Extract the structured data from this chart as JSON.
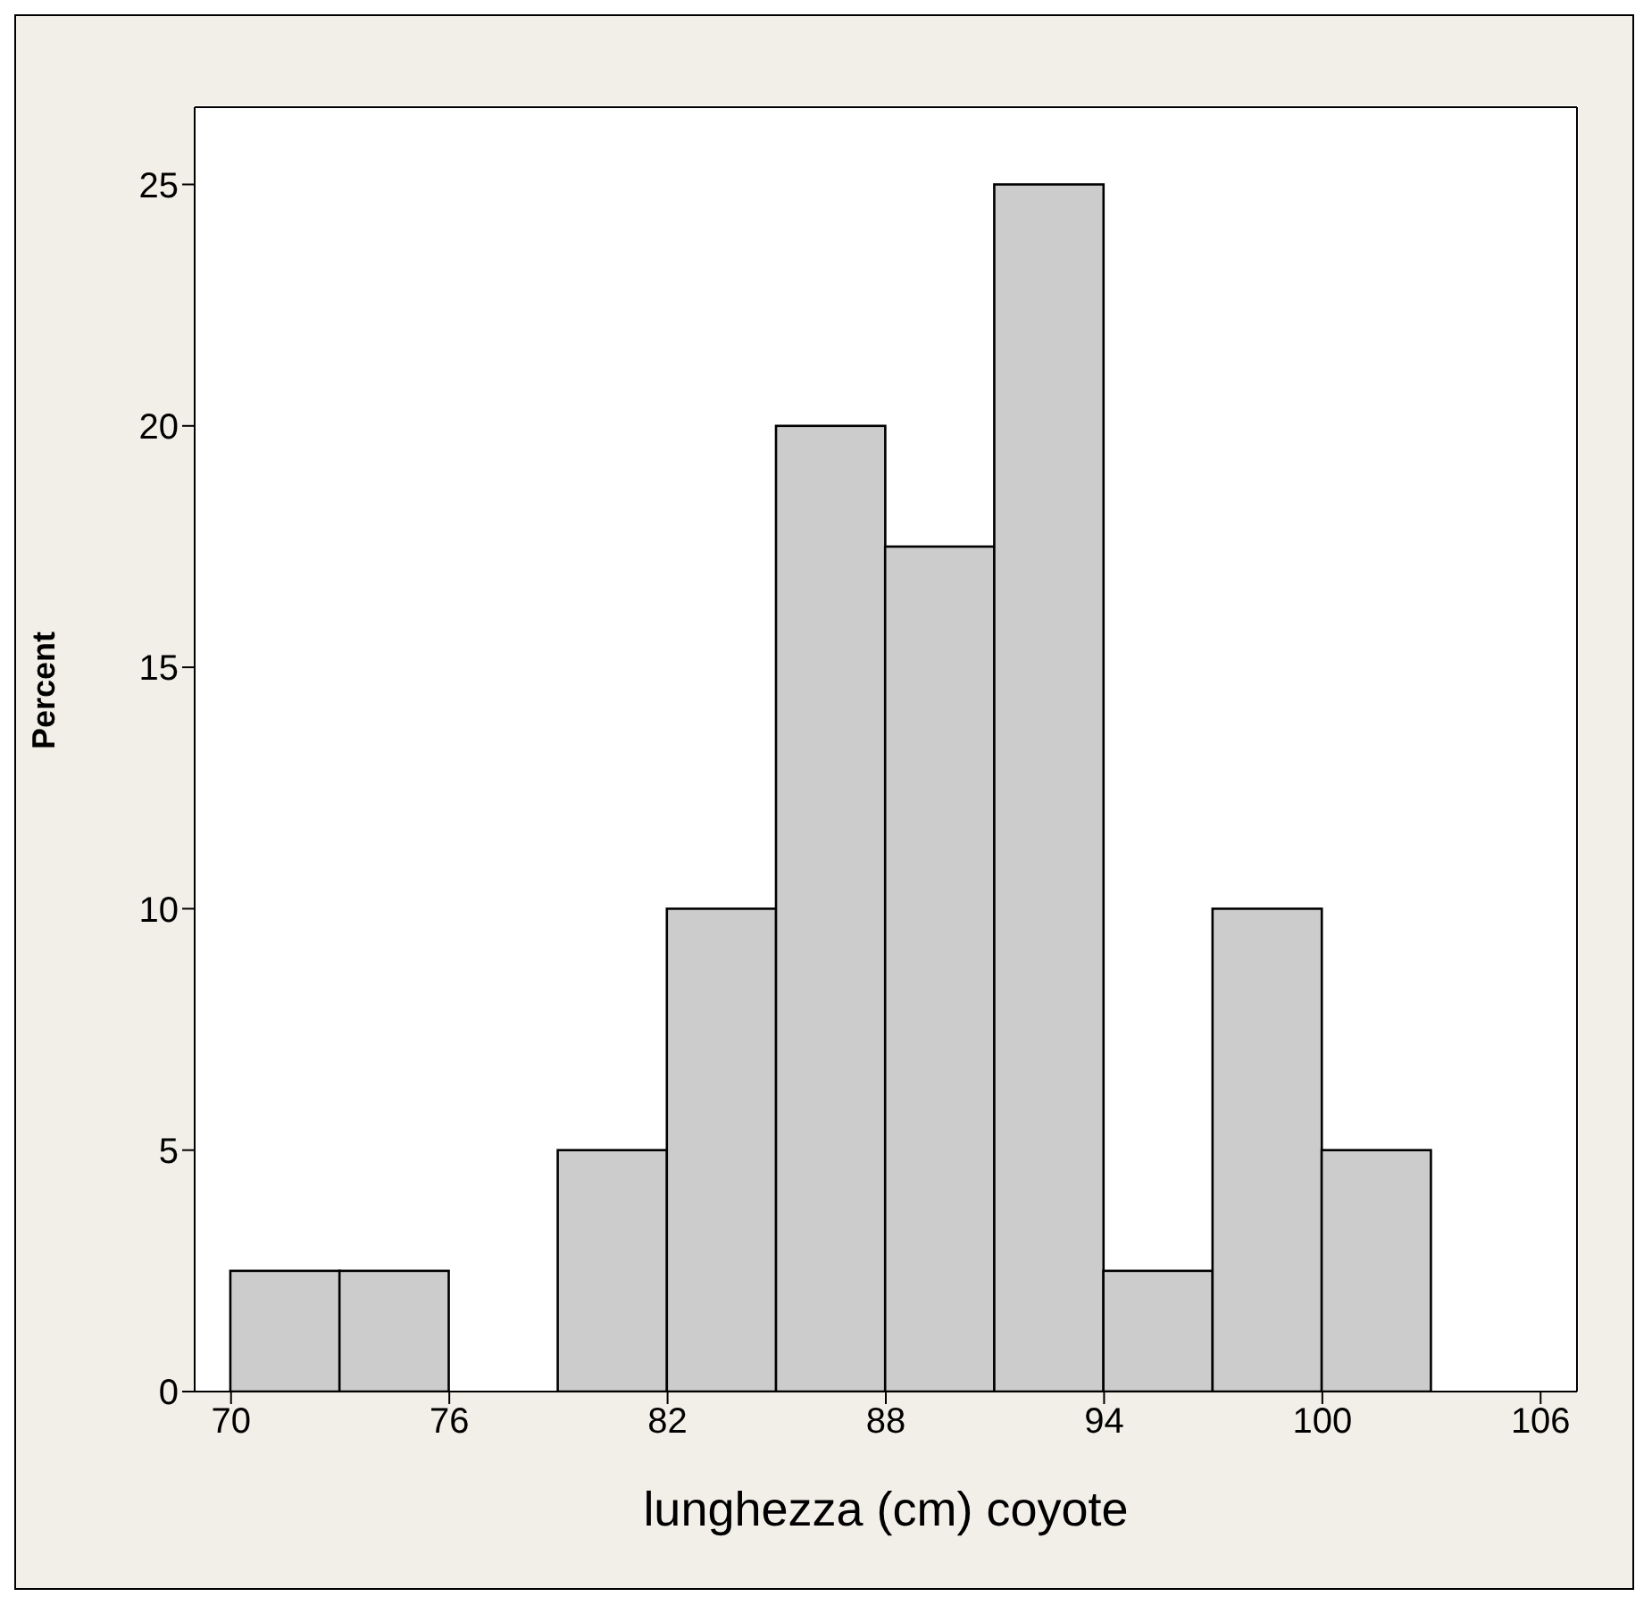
{
  "chart_data": {
    "type": "histogram",
    "xlabel": "lunghezza (cm) coyote",
    "ylabel": "Percent",
    "bins": [
      70,
      73,
      76,
      79,
      82,
      85,
      88,
      91,
      94,
      97,
      100,
      103,
      106
    ],
    "values": [
      2.5,
      2.5,
      0,
      5,
      10,
      20,
      17.5,
      25,
      2.5,
      10,
      5,
      0
    ],
    "color": "#cccccc",
    "xlim": [
      69,
      107
    ],
    "xticks": [
      70,
      76,
      82,
      88,
      94,
      100,
      106
    ],
    "ylim": [
      0,
      26.6
    ],
    "yticks": [
      0,
      5,
      10,
      15,
      20,
      25
    ]
  }
}
